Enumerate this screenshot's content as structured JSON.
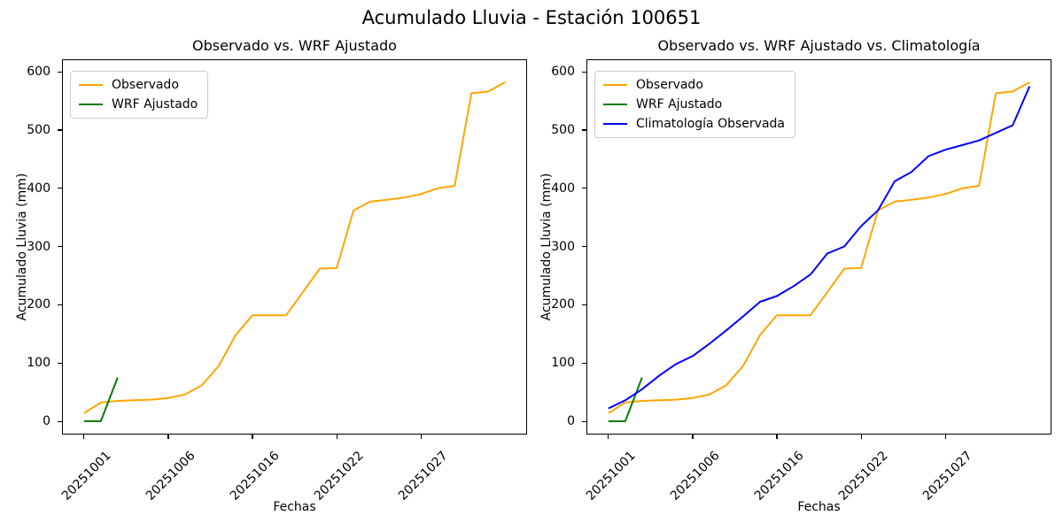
{
  "figure": {
    "title": "Acumulado Lluvia - Estación 100651"
  },
  "chart_data": [
    {
      "type": "line",
      "title": "Observado vs. WRF Ajustado",
      "xlabel": "Fechas",
      "ylabel": "Acumulado Lluvia (mm)",
      "y_ticks": [
        0,
        100,
        200,
        300,
        400,
        500,
        600
      ],
      "ylim": [
        -20,
        620
      ],
      "x_tick_labels": [
        "20251001",
        "20251006",
        "20251016",
        "20251022",
        "20251027"
      ],
      "x_tick_indices": [
        0,
        5,
        10,
        15,
        20
      ],
      "x_tick_rotation": 45,
      "n_points": 26,
      "grid": false,
      "legend_position": "upper left",
      "series": [
        {
          "name": "Observado",
          "color": "#ffa500",
          "values": [
            14,
            32,
            35,
            36,
            37,
            40,
            46,
            62,
            95,
            148,
            182,
            182,
            182,
            222,
            262,
            263,
            362,
            377,
            380,
            384,
            390,
            400,
            404,
            563,
            566,
            582
          ]
        },
        {
          "name": "WRF Ajustado",
          "color": "#008000",
          "x_indices": [
            0,
            1,
            2
          ],
          "values": [
            0,
            0,
            75
          ]
        }
      ]
    },
    {
      "type": "line",
      "title": "Observado vs. WRF Ajustado vs. Climatología",
      "xlabel": "Fechas",
      "ylabel": "Acumulado Lluvia (mm)",
      "y_ticks": [
        0,
        100,
        200,
        300,
        400,
        500,
        600
      ],
      "ylim": [
        -20,
        620
      ],
      "x_tick_labels": [
        "20251001",
        "20251006",
        "20251016",
        "20251022",
        "20251027"
      ],
      "x_tick_indices": [
        0,
        5,
        10,
        15,
        20
      ],
      "x_tick_rotation": 45,
      "n_points": 26,
      "grid": false,
      "legend_position": "upper left",
      "series": [
        {
          "name": "Observado",
          "color": "#ffa500",
          "values": [
            14,
            32,
            35,
            36,
            37,
            40,
            46,
            62,
            95,
            148,
            182,
            182,
            182,
            222,
            262,
            263,
            362,
            377,
            380,
            384,
            390,
            400,
            404,
            563,
            566,
            582
          ]
        },
        {
          "name": "WRF Ajustado",
          "color": "#008000",
          "x_indices": [
            0,
            1,
            2
          ],
          "values": [
            0,
            0,
            75
          ]
        },
        {
          "name": "Climatología Observada",
          "color": "#0000ff",
          "values": [
            22,
            36,
            55,
            78,
            98,
            112,
            133,
            156,
            180,
            205,
            215,
            232,
            252,
            288,
            300,
            335,
            362,
            412,
            428,
            455,
            466,
            474,
            482,
            495,
            508,
            575
          ]
        }
      ]
    }
  ]
}
